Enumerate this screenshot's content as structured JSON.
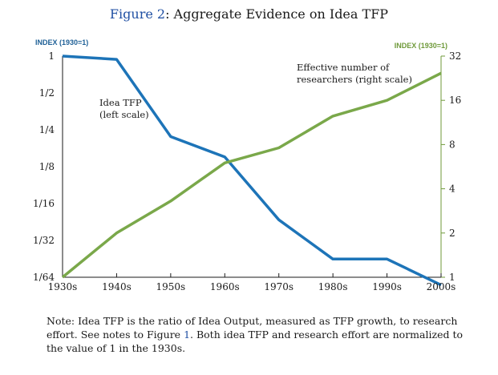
{
  "figure": {
    "label": "Figure 2",
    "title": ": Aggregate Evidence on Idea TFP"
  },
  "note": {
    "before": "Note: Idea TFP is the ratio of Idea Output, measured as TFP growth, to research effort. See notes to Figure ",
    "ref": "1",
    "after": ". Both idea TFP and research effort are normalized to the value of 1 in the 1930s."
  },
  "chart_data": {
    "type": "line",
    "categories": [
      "1930s",
      "1940s",
      "1950s",
      "1960s",
      "1970s",
      "1980s",
      "1990s",
      "2000s"
    ],
    "left_axis": {
      "title": "INDEX (1930=1)",
      "scale": "log2",
      "ticks": [
        1,
        0.5,
        0.25,
        0.125,
        0.0625,
        0.03125,
        0.015625
      ],
      "tick_labels": [
        "1",
        "1/2",
        "1/4",
        "1/8",
        "1/16",
        "1/32",
        "1/64"
      ],
      "range": [
        0.015625,
        1
      ],
      "color": "#1d5f96"
    },
    "right_axis": {
      "title": "INDEX (1930=1)",
      "scale": "log2",
      "ticks": [
        1,
        2,
        4,
        8,
        16,
        32
      ],
      "tick_labels": [
        "1",
        "2",
        "4",
        "8",
        "16",
        "32"
      ],
      "range": [
        1,
        32
      ],
      "color": "#6f9a3a"
    },
    "series": [
      {
        "name": "Idea TFP",
        "label_lines": [
          "Idea TFP",
          "(left scale)"
        ],
        "axis": "left",
        "color": "#1d74b8",
        "values": [
          1,
          0.94,
          0.22,
          0.15,
          0.046,
          0.022,
          0.022,
          0.0135
        ]
      },
      {
        "name": "Effective number of researchers",
        "label_lines": [
          "Effective number of",
          "researchers (right scale)"
        ],
        "axis": "right",
        "color": "#7aa84a",
        "values": [
          1,
          2,
          3.3,
          6,
          7.6,
          12.5,
          16,
          24.5
        ]
      }
    ],
    "grid": false
  }
}
